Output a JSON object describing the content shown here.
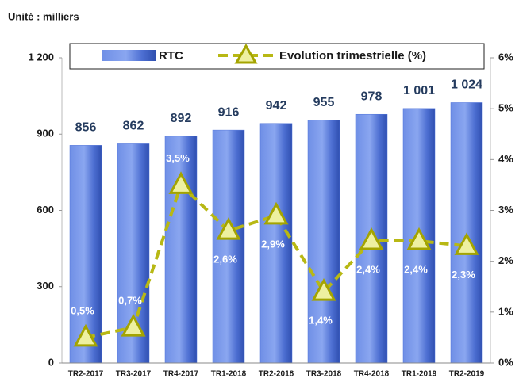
{
  "chart_data": {
    "type": "bar_line",
    "title": "Unité : milliers",
    "categories": [
      "TR2-2017",
      "TR3-2017",
      "TR4-2017",
      "TR1-2018",
      "TR2-2018",
      "TR3-2018",
      "TR4-2018",
      "TR1-2019",
      "TR2-2019"
    ],
    "series": [
      {
        "name": "RTC",
        "color": "#4f73d9",
        "values": [
          856,
          862,
          892,
          916,
          942,
          955,
          978,
          1001,
          1024
        ],
        "value_labels": [
          "856",
          "862",
          "892",
          "916",
          "942",
          "955",
          "978",
          "1 001",
          "1 024"
        ]
      },
      {
        "name": "Evolution trimestrielle (%)",
        "color": "#b8b814",
        "axis": "y2",
        "values": [
          0.5,
          0.7,
          3.5,
          2.6,
          2.9,
          1.4,
          2.4,
          2.4,
          2.3
        ],
        "value_labels": [
          "0,5%",
          "0,7%",
          "3,5%",
          "2,6%",
          "2,9%",
          "1,4%",
          "2,4%",
          "2,4%",
          "2,3%"
        ]
      }
    ],
    "ylim": [
      0,
      1200
    ],
    "yticks": [
      0,
      300,
      600,
      900,
      {
        "value": 1200,
        "label": "1 200"
      }
    ],
    "y2lim": [
      0,
      6
    ],
    "y2ticks": [
      {
        "value": 0,
        "label": "0%"
      },
      {
        "value": 1,
        "label": "1%"
      },
      {
        "value": 2,
        "label": "2%"
      },
      {
        "value": 3,
        "label": "3%"
      },
      {
        "value": 4,
        "label": "4%"
      },
      {
        "value": 5,
        "label": "5%"
      },
      {
        "value": 6,
        "label": "6%"
      }
    ]
  }
}
